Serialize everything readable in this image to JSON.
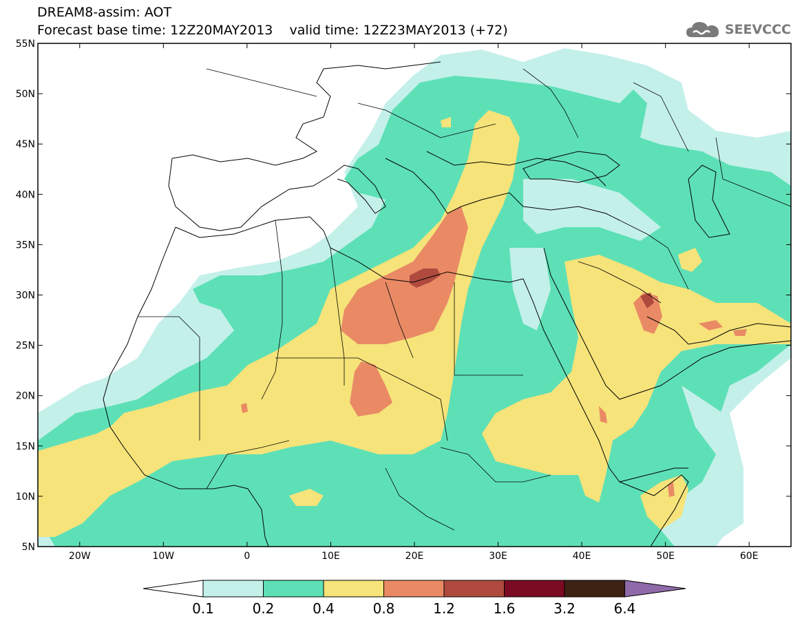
{
  "header": {
    "title_line1": "DREAM8-assim: AOT",
    "title_line2": "Forecast base time: 12Z20MAY2013    valid time: 12Z23MAY2013 (+72)"
  },
  "brand": {
    "text": "SEEVCCC",
    "icon": "cloud-logo-icon",
    "color": "#7a7a7a"
  },
  "map": {
    "lon_range": [
      -25,
      65
    ],
    "lat_range": [
      5,
      55
    ],
    "lat_labels": [
      "55N",
      "50N",
      "45N",
      "40N",
      "35N",
      "30N",
      "25N",
      "20N",
      "15N",
      "10N",
      "5N"
    ],
    "lat_values": [
      55,
      50,
      45,
      40,
      35,
      30,
      25,
      20,
      15,
      10,
      5
    ],
    "lon_labels": [
      "20W",
      "10W",
      "0",
      "10E",
      "20E",
      "30E",
      "40E",
      "50E",
      "60E"
    ],
    "lon_values": [
      -20,
      -10,
      0,
      10,
      20,
      30,
      40,
      50,
      60
    ]
  },
  "colorbar": {
    "levels": [
      "0.1",
      "0.2",
      "0.4",
      "0.8",
      "1.2",
      "1.6",
      "3.2",
      "6.4"
    ],
    "colors": [
      "#c4f0ea",
      "#5ee0b6",
      "#f6e37a",
      "#e98a65",
      "#b04a3e",
      "#7a0b22",
      "#3e2213",
      "#8e6aa8"
    ],
    "below_color": "#ffffff"
  }
}
